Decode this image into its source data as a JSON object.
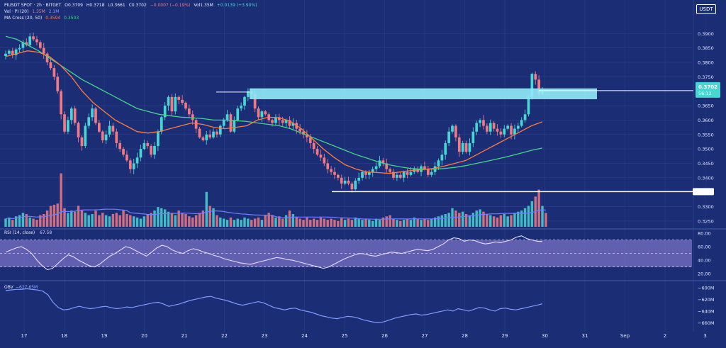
{
  "header": {
    "symbol_line": [
      "PIUSDT SPOT · 2h · BITGET",
      "O0.3709",
      "H0.3718",
      "L0.3661",
      "C0.3702",
      "−0.0007 (−0.19%)",
      "Vol1.35M",
      "+0.0139 (+3.90%)"
    ],
    "vol_line": [
      "Vol · PI (20)",
      "1.35M",
      "2.1M"
    ],
    "ma_line": [
      "MA Cross (20, 50)",
      "0.3594",
      "0.3503"
    ],
    "currency_button": "USDT"
  },
  "colors": {
    "background": "#1b2d74",
    "up": "#48d6d3",
    "down": "#f07a84",
    "ma_fast": "#ff7a3d",
    "ma_slow": "#44d48a",
    "vol_ma": "#6f7dff",
    "rsi_band": "#9a88e0",
    "rsi_line": "#e6dcff",
    "obv_line": "#7f9bff",
    "zone": "#8fe8f5"
  },
  "chart_data": [
    {
      "type": "candlestick",
      "title": "PIUSDT SPOT · 2h · BITGET",
      "x_tick_labels": [
        "17",
        "18",
        "19",
        "20",
        "21",
        "22",
        "23",
        "24",
        "25",
        "26",
        "27",
        "28",
        "29",
        "30",
        "31",
        "Sep",
        "2",
        "3"
      ],
      "y_tick_labels": [
        "0.3900",
        "0.3850",
        "0.3800",
        "0.3750",
        "0.3650",
        "0.3600",
        "0.3550",
        "0.3500",
        "0.3450",
        "0.3400",
        "0.3300",
        "0.3250"
      ],
      "ylim": [
        0.3235,
        0.3935
      ],
      "last_price_label": [
        "0.3702",
        "56:12"
      ],
      "last_price": 0.3702,
      "resistance_zone": [
        0.3682,
        0.37
      ],
      "support_level": 0.3352,
      "close_series": [
        0.383,
        0.384,
        0.3825,
        0.3845,
        0.385,
        0.387,
        0.386,
        0.389,
        0.388,
        0.387,
        0.385,
        0.383,
        0.38,
        0.378,
        0.375,
        0.37,
        0.362,
        0.356,
        0.36,
        0.364,
        0.359,
        0.354,
        0.351,
        0.358,
        0.361,
        0.364,
        0.359,
        0.356,
        0.353,
        0.355,
        0.358,
        0.356,
        0.352,
        0.35,
        0.348,
        0.346,
        0.343,
        0.345,
        0.347,
        0.35,
        0.352,
        0.351,
        0.348,
        0.351,
        0.356,
        0.361,
        0.365,
        0.368,
        0.363,
        0.368,
        0.367,
        0.366,
        0.364,
        0.362,
        0.36,
        0.357,
        0.354,
        0.353,
        0.355,
        0.354,
        0.356,
        0.355,
        0.358,
        0.36,
        0.362,
        0.356,
        0.36,
        0.364,
        0.365,
        0.368,
        0.37,
        0.369,
        0.364,
        0.361,
        0.363,
        0.362,
        0.36,
        0.359,
        0.361,
        0.36,
        0.359,
        0.36,
        0.358,
        0.359,
        0.357,
        0.356,
        0.355,
        0.354,
        0.352,
        0.35,
        0.348,
        0.347,
        0.345,
        0.343,
        0.342,
        0.341,
        0.34,
        0.338,
        0.339,
        0.338,
        0.336,
        0.339,
        0.34,
        0.342,
        0.341,
        0.342,
        0.343,
        0.344,
        0.346,
        0.345,
        0.343,
        0.342,
        0.34,
        0.341,
        0.34,
        0.342,
        0.341,
        0.342,
        0.343,
        0.342,
        0.344,
        0.343,
        0.341,
        0.342,
        0.344,
        0.346,
        0.348,
        0.352,
        0.356,
        0.358,
        0.354,
        0.349,
        0.352,
        0.349,
        0.352,
        0.356,
        0.359,
        0.36,
        0.358,
        0.356,
        0.359,
        0.357,
        0.356,
        0.355,
        0.357,
        0.358,
        0.355,
        0.357,
        0.358,
        0.36,
        0.362,
        0.368,
        0.376,
        0.374,
        0.369,
        0.3702
      ],
      "ma_fast_series": [
        0.382,
        0.383,
        0.384,
        0.3835,
        0.382,
        0.379,
        0.375,
        0.37,
        0.366,
        0.363,
        0.36,
        0.358,
        0.356,
        0.3555,
        0.356,
        0.357,
        0.358,
        0.359,
        0.3585,
        0.3575,
        0.357,
        0.3575,
        0.358,
        0.36,
        0.361,
        0.3608,
        0.3595,
        0.357,
        0.3535,
        0.35,
        0.347,
        0.3445,
        0.343,
        0.342,
        0.3418,
        0.3415,
        0.342,
        0.3425,
        0.3428,
        0.3432,
        0.344,
        0.345,
        0.346,
        0.348,
        0.35,
        0.352,
        0.354,
        0.356,
        0.358,
        0.3594
      ],
      "ma_slow_series": [
        0.389,
        0.388,
        0.386,
        0.384,
        0.3815,
        0.379,
        0.3765,
        0.374,
        0.372,
        0.37,
        0.368,
        0.366,
        0.364,
        0.363,
        0.362,
        0.3615,
        0.361,
        0.3608,
        0.3605,
        0.36,
        0.36,
        0.3598,
        0.3595,
        0.359,
        0.3585,
        0.358,
        0.357,
        0.3555,
        0.354,
        0.3525,
        0.351,
        0.3495,
        0.348,
        0.3468,
        0.3455,
        0.3445,
        0.3438,
        0.3432,
        0.343,
        0.343,
        0.3432,
        0.3436,
        0.3442,
        0.345,
        0.3458,
        0.3466,
        0.3475,
        0.3485,
        0.3495,
        0.3503
      ]
    },
    {
      "type": "bar",
      "title": "Vol · PI (20)",
      "volume_series": [
        0.35,
        0.4,
        0.3,
        0.45,
        0.5,
        0.6,
        0.55,
        0.4,
        0.35,
        0.3,
        0.5,
        0.55,
        0.7,
        0.9,
        0.95,
        1.0,
        2.3,
        0.8,
        0.6,
        0.7,
        0.65,
        0.9,
        0.7,
        0.6,
        0.5,
        0.55,
        0.7,
        0.5,
        0.6,
        0.5,
        0.45,
        0.55,
        0.6,
        0.5,
        0.7,
        0.55,
        0.5,
        0.45,
        0.4,
        0.35,
        0.45,
        0.55,
        0.6,
        0.7,
        0.85,
        0.8,
        0.75,
        0.65,
        0.6,
        0.5,
        0.7,
        0.6,
        0.55,
        0.45,
        0.4,
        0.5,
        0.6,
        0.7,
        1.5,
        0.9,
        0.8,
        0.5,
        0.4,
        0.35,
        0.3,
        0.4,
        0.3,
        0.35,
        0.3,
        0.4,
        0.35,
        0.3,
        0.35,
        0.4,
        0.3,
        0.5,
        0.6,
        0.5,
        0.4,
        0.45,
        0.35,
        0.5,
        0.7,
        0.55,
        0.4,
        0.35,
        0.3,
        0.4,
        0.3,
        0.35,
        0.3,
        0.4,
        0.35,
        0.3,
        0.35,
        0.3,
        0.25,
        0.4,
        0.3,
        0.35,
        0.3,
        0.4,
        0.35,
        0.3,
        0.35,
        0.3,
        0.25,
        0.35,
        0.3,
        0.4,
        0.45,
        0.5,
        0.35,
        0.3,
        0.25,
        0.3,
        0.35,
        0.3,
        0.4,
        0.35,
        0.3,
        0.35,
        0.3,
        0.35,
        0.4,
        0.45,
        0.5,
        0.55,
        0.6,
        0.8,
        0.7,
        0.6,
        0.65,
        0.55,
        0.5,
        0.6,
        0.7,
        0.75,
        0.65,
        0.55,
        0.5,
        0.45,
        0.4,
        0.5,
        0.55,
        0.45,
        0.5,
        0.6,
        0.65,
        0.7,
        0.8,
        0.9,
        1.1,
        1.3,
        1.6,
        0.9,
        0.6
      ],
      "ylim": [
        0,
        2.5
      ]
    },
    {
      "type": "line",
      "title": "RSI (14, close)",
      "value_label": "67.58",
      "y_tick_labels": [
        "80.00",
        "60.00",
        "40.00",
        "20.00"
      ],
      "ylim": [
        15,
        82
      ],
      "band": [
        30,
        70
      ],
      "mid": 50,
      "rsi_series": [
        52,
        55,
        58,
        60,
        56,
        50,
        40,
        32,
        26,
        28,
        35,
        42,
        48,
        45,
        40,
        36,
        32,
        30,
        34,
        40,
        46,
        50,
        55,
        60,
        58,
        54,
        50,
        46,
        52,
        58,
        62,
        60,
        55,
        52,
        50,
        54,
        57,
        55,
        52,
        50,
        47,
        45,
        42,
        40,
        38,
        36,
        35,
        34,
        36,
        38,
        40,
        42,
        44,
        43,
        41,
        40,
        38,
        36,
        34,
        32,
        30,
        28,
        30,
        34,
        38,
        42,
        45,
        48,
        50,
        49,
        47,
        46,
        48,
        50,
        52,
        51,
        50,
        52,
        54,
        56,
        55,
        54,
        56,
        60,
        64,
        70,
        73,
        72,
        68,
        70,
        69,
        66,
        64,
        65,
        67,
        66,
        68,
        70,
        74,
        76,
        72,
        70,
        68,
        67.58
      ]
    },
    {
      "type": "line",
      "title": "OBV",
      "value_label": "−627.65M",
      "y_tick_labels": [
        "−600M",
        "−620M",
        "−640M",
        "−660M"
      ],
      "ylim": [
        -668,
        -593
      ],
      "obv_series": [
        -605,
        -604,
        -603,
        -603,
        -602,
        -603,
        -604,
        -606,
        -612,
        -625,
        -634,
        -638,
        -637,
        -634,
        -632,
        -634,
        -636,
        -635,
        -633,
        -632,
        -634,
        -636,
        -635,
        -633,
        -634,
        -632,
        -630,
        -628,
        -626,
        -625,
        -628,
        -632,
        -630,
        -628,
        -625,
        -622,
        -620,
        -618,
        -616,
        -615,
        -618,
        -620,
        -622,
        -625,
        -628,
        -630,
        -628,
        -626,
        -624,
        -626,
        -630,
        -634,
        -636,
        -638,
        -636,
        -635,
        -638,
        -640,
        -642,
        -645,
        -648,
        -650,
        -652,
        -653,
        -651,
        -649,
        -650,
        -652,
        -655,
        -657,
        -659,
        -660,
        -658,
        -655,
        -652,
        -650,
        -648,
        -646,
        -645,
        -647,
        -646,
        -644,
        -642,
        -640,
        -638,
        -640,
        -636,
        -638,
        -640,
        -637,
        -634,
        -635,
        -638,
        -640,
        -636,
        -635,
        -637,
        -638,
        -636,
        -634,
        -632,
        -630,
        -627.65
      ]
    }
  ]
}
